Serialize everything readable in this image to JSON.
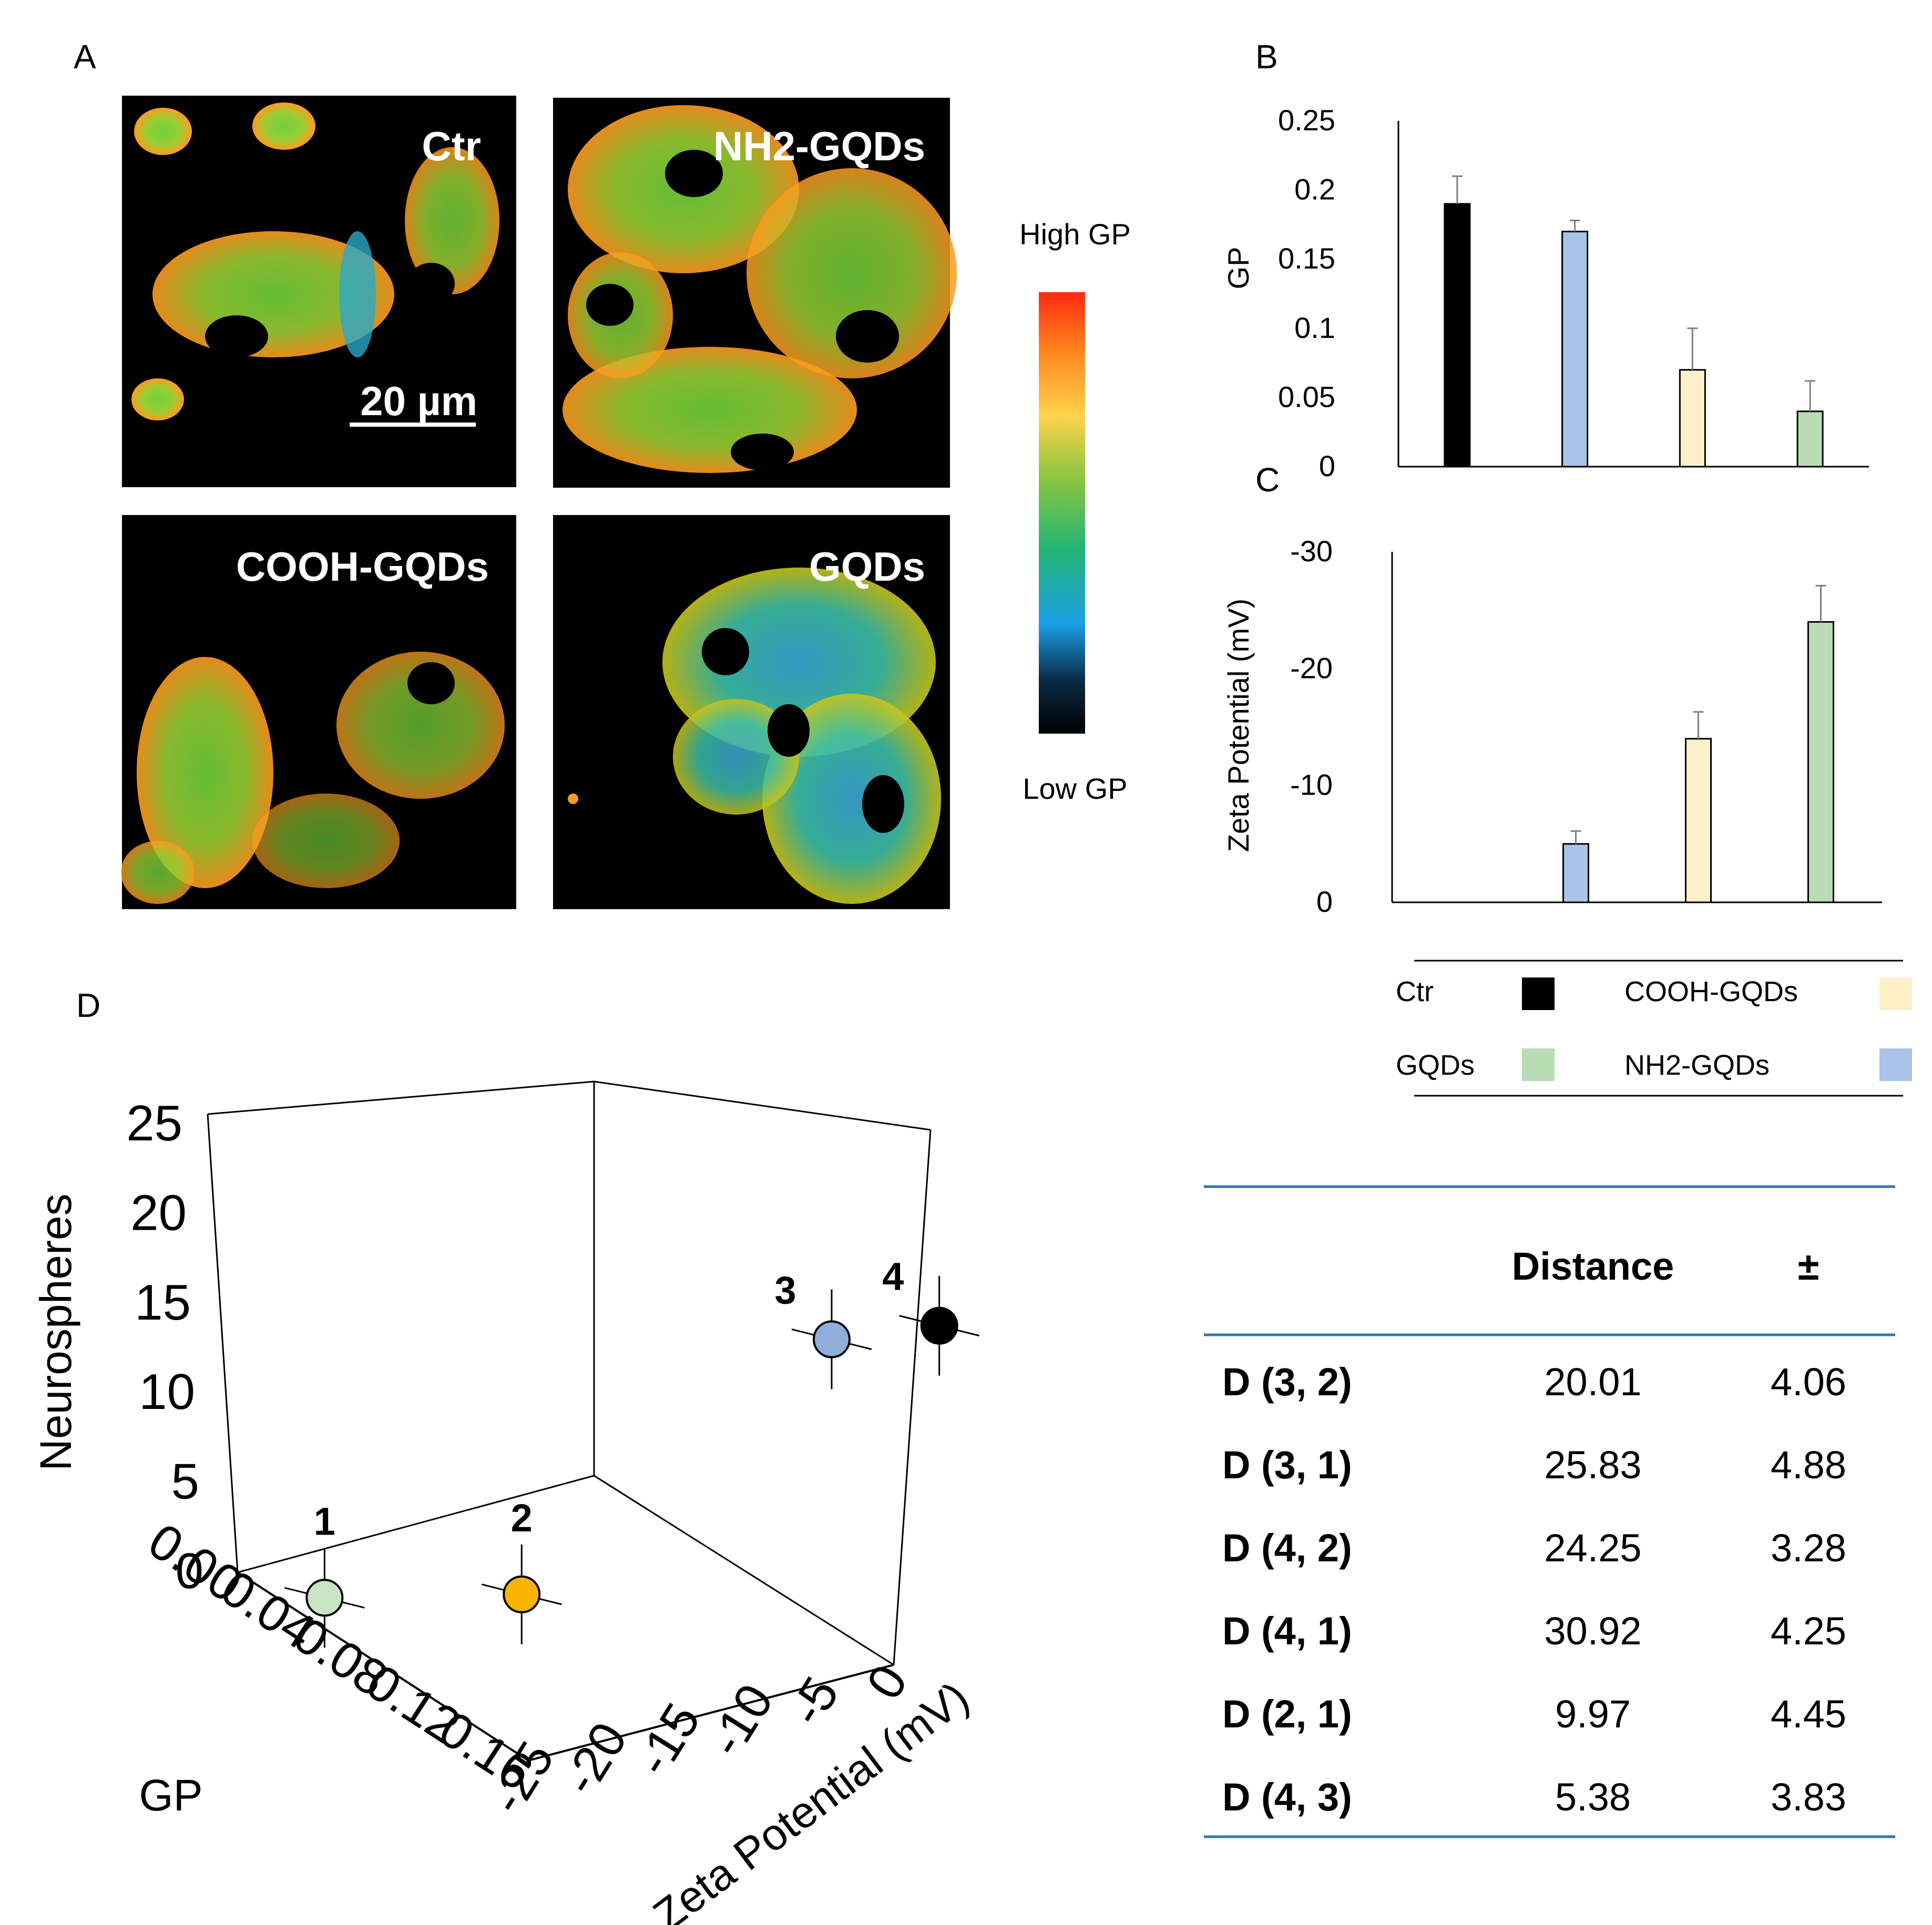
{
  "panels": {
    "a": "A",
    "b": "B",
    "c": "C",
    "d": "D"
  },
  "images": {
    "labels": [
      "Ctr",
      "NH2-GQDs",
      "COOH-GQDs",
      "GQDs"
    ],
    "scale_bar": "20 µm",
    "colorbar_high": "High GP",
    "colorbar_low": "Low GP"
  },
  "colors": {
    "Ctr": "#000000",
    "NH2-GQDs": "#a9c4e6",
    "COOH-GQDs": "#fdf0c8",
    "GQDs": "#b9dcb5",
    "point1": "#c7e5c3",
    "point2": "#f7b400",
    "point3": "#8faedb",
    "point4": "#000000",
    "table_rule": "#2e75b6"
  },
  "legend": {
    "items": [
      {
        "label": "Ctr",
        "key": "Ctr"
      },
      {
        "label": "COOH-GQDs",
        "key": "COOH-GQDs"
      },
      {
        "label": "GQDs",
        "key": "GQDs"
      },
      {
        "label": "NH2-GQDs",
        "key": "NH2-GQDs"
      }
    ]
  },
  "chart_data": [
    {
      "panel": "B",
      "type": "bar",
      "categories": [
        "Ctr",
        "NH2-GQDs",
        "COOH-GQDs",
        "GQDs"
      ],
      "values": [
        0.19,
        0.17,
        0.07,
        0.04
      ],
      "errors": [
        0.02,
        0.008,
        0.03,
        0.022
      ],
      "ylabel": "GP",
      "ylim": [
        0,
        0.25
      ],
      "yticks": [
        "0",
        "0.05",
        "0.1",
        "0.15",
        "0.2",
        "0.25"
      ]
    },
    {
      "panel": "C",
      "type": "bar",
      "categories": [
        "Ctr",
        "NH2-GQDs",
        "COOH-GQDs",
        "GQDs"
      ],
      "values": [
        0,
        -5,
        -14,
        -24
      ],
      "errors": [
        0,
        1.1,
        2.3,
        3.1
      ],
      "ylabel": "Zeta Potential (mV)",
      "ylim": [
        0,
        -30
      ],
      "yticks": [
        "0",
        "-10",
        "-20",
        "-30"
      ]
    },
    {
      "panel": "D",
      "type": "scatter",
      "title": "",
      "xlabel": "GP",
      "ylabel": "Zeta Potential (mV)",
      "zlabel": "Neurospheres",
      "xticks": [
        "0.00",
        "0.04",
        "0.08",
        "0.12",
        "0.16"
      ],
      "yticks": [
        "0",
        "-5",
        "-10",
        "-15",
        "-20",
        "-25"
      ],
      "zticks": [
        "0",
        "5",
        "10",
        "15",
        "20",
        "25"
      ],
      "points": [
        {
          "label": "1",
          "gp": 0.04,
          "zeta": -24,
          "neurospheres": 1
        },
        {
          "label": "2",
          "gp": 0.07,
          "zeta": -14,
          "neurospheres": 1
        },
        {
          "label": "3",
          "gp": 0.17,
          "zeta": -5,
          "neurospheres": 20
        },
        {
          "label": "4",
          "gp": 0.19,
          "zeta": 0,
          "neurospheres": 21
        }
      ]
    },
    {
      "panel": "D",
      "type": "table",
      "columns": [
        "",
        "Distance",
        "±"
      ],
      "rows": [
        [
          "D (3, 2)",
          "20.01",
          "4.06"
        ],
        [
          "D (3, 1)",
          "25.83",
          "4.88"
        ],
        [
          "D (4, 2)",
          "24.25",
          "3.28"
        ],
        [
          "D (4, 1)",
          "30.92",
          "4.25"
        ],
        [
          "D (2, 1)",
          "9.97",
          "4.45"
        ],
        [
          "D (4, 3)",
          "5.38",
          "3.83"
        ]
      ]
    }
  ]
}
